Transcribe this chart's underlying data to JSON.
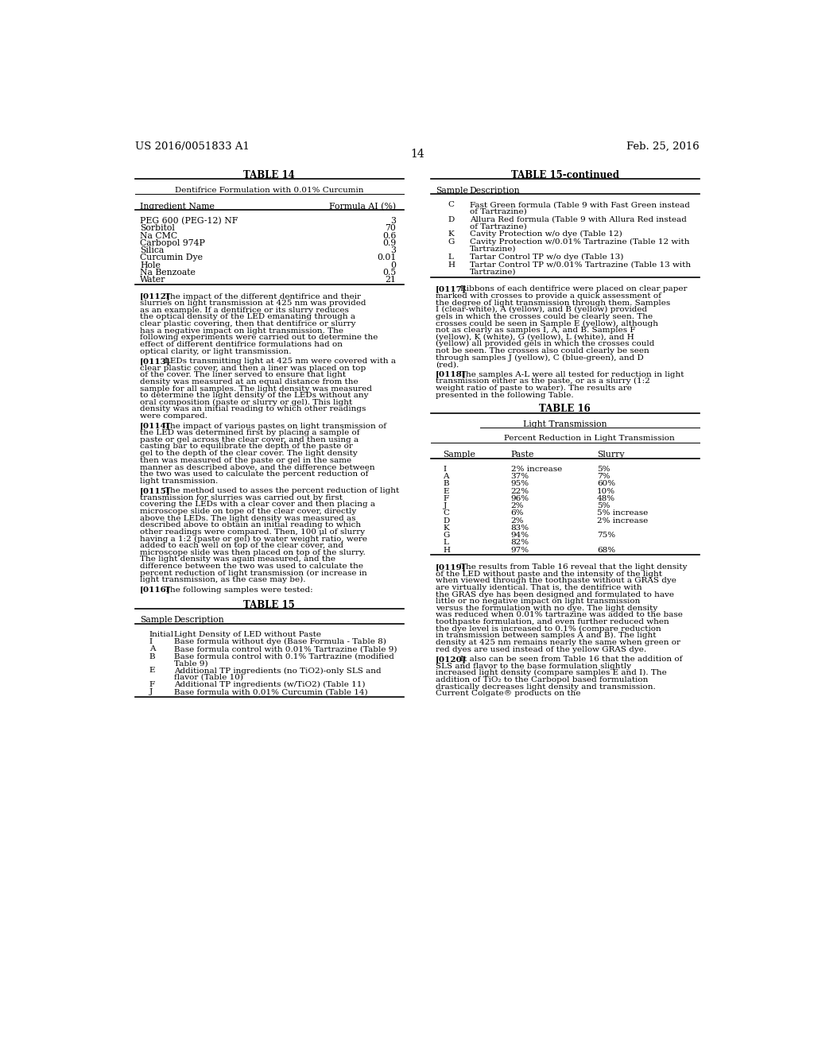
{
  "header_left": "US 2016/0051833 A1",
  "header_right": "Feb. 25, 2016",
  "page_number": "14",
  "bg_color": "#ffffff",
  "table14": {
    "title": "TABLE 14",
    "subtitle": "Dentifrice Formulation with 0.01% Curcumin",
    "col1_header": "Ingredient Name",
    "col2_header": "Formula AI (%)",
    "rows": [
      [
        "PEG 600 (PEG-12) NF",
        "3"
      ],
      [
        "Sorbitol",
        "70"
      ],
      [
        "Na CMC",
        "0.6"
      ],
      [
        "Carbopol 974P",
        "0.9"
      ],
      [
        "Silica",
        "3"
      ],
      [
        "Curcumin Dye",
        "0.01"
      ],
      [
        "Hole",
        "0"
      ],
      [
        "Na Benzoate",
        "0.5"
      ],
      [
        "Water",
        "21"
      ]
    ]
  },
  "table15": {
    "title": "TABLE 15",
    "col1_header": "Sample",
    "col2_header": "Description",
    "rows": [
      [
        "Initial",
        "Light Density of LED without Paste"
      ],
      [
        "I",
        "Base formula without dye (Base Formula - Table 8)"
      ],
      [
        "A",
        "Base formula control with 0.01% Tartrazine (Table 9)"
      ],
      [
        "B",
        "Base formula control with 0.1% Tartrazine (modified\nTable 9)"
      ],
      [
        "E",
        "Additional TP ingredients (no TiO2)-only SLS and\nflavor (Table 10)"
      ],
      [
        "F",
        "Additional TP ingredients (w/TiO2) (Table 11)"
      ],
      [
        "J",
        "Base formula with 0.01% Curcumin (Table 14)"
      ]
    ]
  },
  "table15cont": {
    "title": "TABLE 15-continued",
    "col1_header": "Sample",
    "col2_header": "Description",
    "rows": [
      [
        "C",
        "Fast Green formula (Table 9 with Fast Green instead\nof Tartrazine)"
      ],
      [
        "D",
        "Allura Red formula (Table 9 with Allura Red instead\nof Tartrazine)"
      ],
      [
        "K",
        "Cavity Protection w/o dye (Table 12)"
      ],
      [
        "G",
        "Cavity Protection w/0.01% Tartrazine (Table 12 with\nTartrazine)"
      ],
      [
        "L",
        "Tartar Control TP w/o dye (Table 13)"
      ],
      [
        "H",
        "Tartar Control TP w/0.01% Tartrazine (Table 13 with\nTartrazine)"
      ]
    ]
  },
  "table16": {
    "title": "TABLE 16",
    "subtitle": "Light Transmission",
    "subsubtitle": "Percent Reduction in Light Transmission",
    "col1_header": "Sample",
    "col2_header": "Paste",
    "col3_header": "Slurry",
    "rows": [
      [
        "I",
        "2% increase",
        "5%"
      ],
      [
        "A",
        "37%",
        "7%"
      ],
      [
        "B",
        "95%",
        "60%"
      ],
      [
        "E",
        "22%",
        "10%"
      ],
      [
        "F",
        "96%",
        "48%"
      ],
      [
        "J",
        "2%",
        "5%"
      ],
      [
        "C",
        "6%",
        "5% increase"
      ],
      [
        "D",
        "2%",
        "2% increase"
      ],
      [
        "K",
        "83%",
        ""
      ],
      [
        "G",
        "94%",
        "75%"
      ],
      [
        "L",
        "82%",
        ""
      ],
      [
        "H",
        "97%",
        "68%"
      ]
    ]
  },
  "paras_left": [
    {
      "tag": "[0112]",
      "text": "The impact of the different dentifrice and their slurries on light transmission at 425 nm was provided as an example. If a dentifrice or its slurry reduces the optical density of the LED emanating through a clear plastic covering, then that dentifrice or slurry has a negative impact on light transmission. The following experiments were carried out to determine the effect of different dentifrice formulations had on optical clarity, or light transmission."
    },
    {
      "tag": "[0113]",
      "text": "LEDs transmitting light at 425 nm were covered with a clear plastic cover, and then a liner was placed on top of the cover. The liner served to ensure that light density was measured at an equal distance from the sample for all samples. The light density was measured to determine the light density of the LEDs without any oral composition (paste or slurry or gel). This light density was an initial reading to which other readings were compared."
    },
    {
      "tag": "[0114]",
      "text": "The impact of various pastes on light transmission of the LED was determined first by placing a sample of paste or gel across the clear cover, and then using a casting bar to equilibrate the depth of the paste or gel to the depth of the clear cover. The light density then was measured of the paste or gel in the same manner as described above, and the difference between the two was used to calculate the percent reduction of light transmission."
    },
    {
      "tag": "[0115]",
      "text": "The method used to asses the percent reduction of light transmission for slurries was carried out by first covering the LEDs with a clear cover and then placing a microscope slide on tope of the clear cover, directly above the LEDs. The light density was measured as described above to obtain an initial reading to which other readings were compared. Then, 100 μl of slurry having a 1:2 (paste or gel) to water weight ratio, were added to each well on top of the clear cover, and microscope slide was then placed on top of the slurry. The light density was again measured, and the difference between the two was used to calculate the percent reduction of light transmission (or increase in light transmission, as the case may be)."
    },
    {
      "tag": "[0116]",
      "text": "The following samples were tested:"
    }
  ],
  "paras_right_before16": [
    {
      "tag": "[0117]",
      "text": "Ribbons of each dentifrice were placed on clear paper marked with crosses to provide a quick assessment of the degree of light transmission through them. Samples I (clear-white), A (yellow), and B (yellow) provided gels in which the crosses could be clearly seen. The crosses could be seen in Sample E (yellow), although not as clearly as samples I, A, and B. Samples F (yellow), K (white), G (yellow), L (white), and H (yellow) all provided gels in which the crosses could not be seen. The crosses also could clearly be seen through samples J (yellow), C (blue-green), and D (red)."
    },
    {
      "tag": "[0118]",
      "text": "The samples A-L were all tested for reduction in light transmission either as the paste, or as a slurry (1:2 weight ratio of paste to water). The results are presented in the following Table."
    }
  ],
  "paras_right_after16": [
    {
      "tag": "[0119]",
      "text": "The results from Table 16 reveal that the light density of the LED without paste and the intensity of the light when viewed through the toothpaste without a GRAS dye are virtually identical. That is, the dentifrice with the GRAS dye has been designed and formulated to have little or no negative impact on light transmission versus the formulation with no dye. The light density was reduced when 0.01% tartrazine was added to the base toothpaste formulation, and even further reduced when the dye level is increased to 0.1% (compare reduction in transmission between samples A and B). The light density at 425 nm remains nearly the same when green or red dyes are used instead of the yellow GRAS dye."
    },
    {
      "tag": "[0120]",
      "text": "It also can be seen from Table 16 that the addition of SLS and flavor to the base formulation slightly increased light density (compare samples E and I). The addition of TiO₂ to the Carbopol based formulation drastically decreases light density and transmission. Current Colgate® products on the"
    }
  ]
}
